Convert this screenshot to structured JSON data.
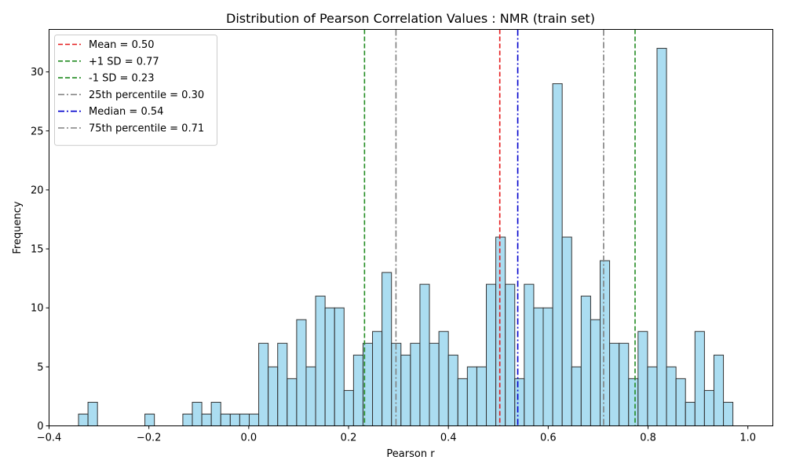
{
  "chart_data": {
    "type": "bar",
    "title": "Distribution of Pearson Correlation Values : NMR (train set)",
    "xlabel": "Pearson r",
    "ylabel": "Frequency",
    "xlim": [
      -0.4,
      1.05
    ],
    "ylim": [
      0,
      33.6
    ],
    "x_ticks": [
      -0.4,
      -0.2,
      0.0,
      0.2,
      0.4,
      0.6,
      0.8,
      1.0
    ],
    "x_tick_labels": [
      "−0.4",
      "−0.2",
      "0.0",
      "0.2",
      "0.4",
      "0.6",
      "0.8",
      "1.0"
    ],
    "y_ticks": [
      0,
      5,
      10,
      15,
      20,
      25,
      30
    ],
    "y_tick_labels": [
      "0",
      "5",
      "10",
      "15",
      "20",
      "25",
      "30"
    ],
    "grid": false,
    "legend_position": "top-left",
    "bin_start": -0.341,
    "bin_width": 0.019,
    "values": [
      1,
      2,
      0,
      0,
      0,
      0,
      0,
      1,
      0,
      0,
      0,
      1,
      2,
      1,
      2,
      1,
      1,
      1,
      1,
      7,
      5,
      7,
      4,
      9,
      5,
      11,
      10,
      10,
      3,
      6,
      7,
      8,
      13,
      7,
      6,
      7,
      12,
      7,
      8,
      6,
      4,
      5,
      5,
      12,
      16,
      12,
      4,
      12,
      10,
      10,
      29,
      16,
      5,
      11,
      9,
      14,
      7,
      7,
      4,
      8,
      5,
      32,
      5,
      4,
      2,
      8,
      3,
      6,
      2
    ],
    "bar_color": "#87CEEB",
    "bar_edge_color": "#333333",
    "reference_lines": [
      {
        "label": "Mean = 0.50",
        "value": 0.503,
        "color": "#e41a1c",
        "style": "dashed"
      },
      {
        "label": "+1 SD = 0.77",
        "value": 0.774,
        "color": "#228B22",
        "style": "dashed"
      },
      {
        "label": "-1 SD = 0.23",
        "value": 0.232,
        "color": "#228B22",
        "style": "dashed"
      },
      {
        "label": "25th percentile = 0.30",
        "value": 0.295,
        "color": "#808080",
        "style": "dashdot"
      },
      {
        "label": "Median = 0.54",
        "value": 0.539,
        "color": "#0000cc",
        "style": "dashdot"
      },
      {
        "label": "75th percentile = 0.71",
        "value": 0.711,
        "color": "#808080",
        "style": "dashdot"
      }
    ]
  }
}
